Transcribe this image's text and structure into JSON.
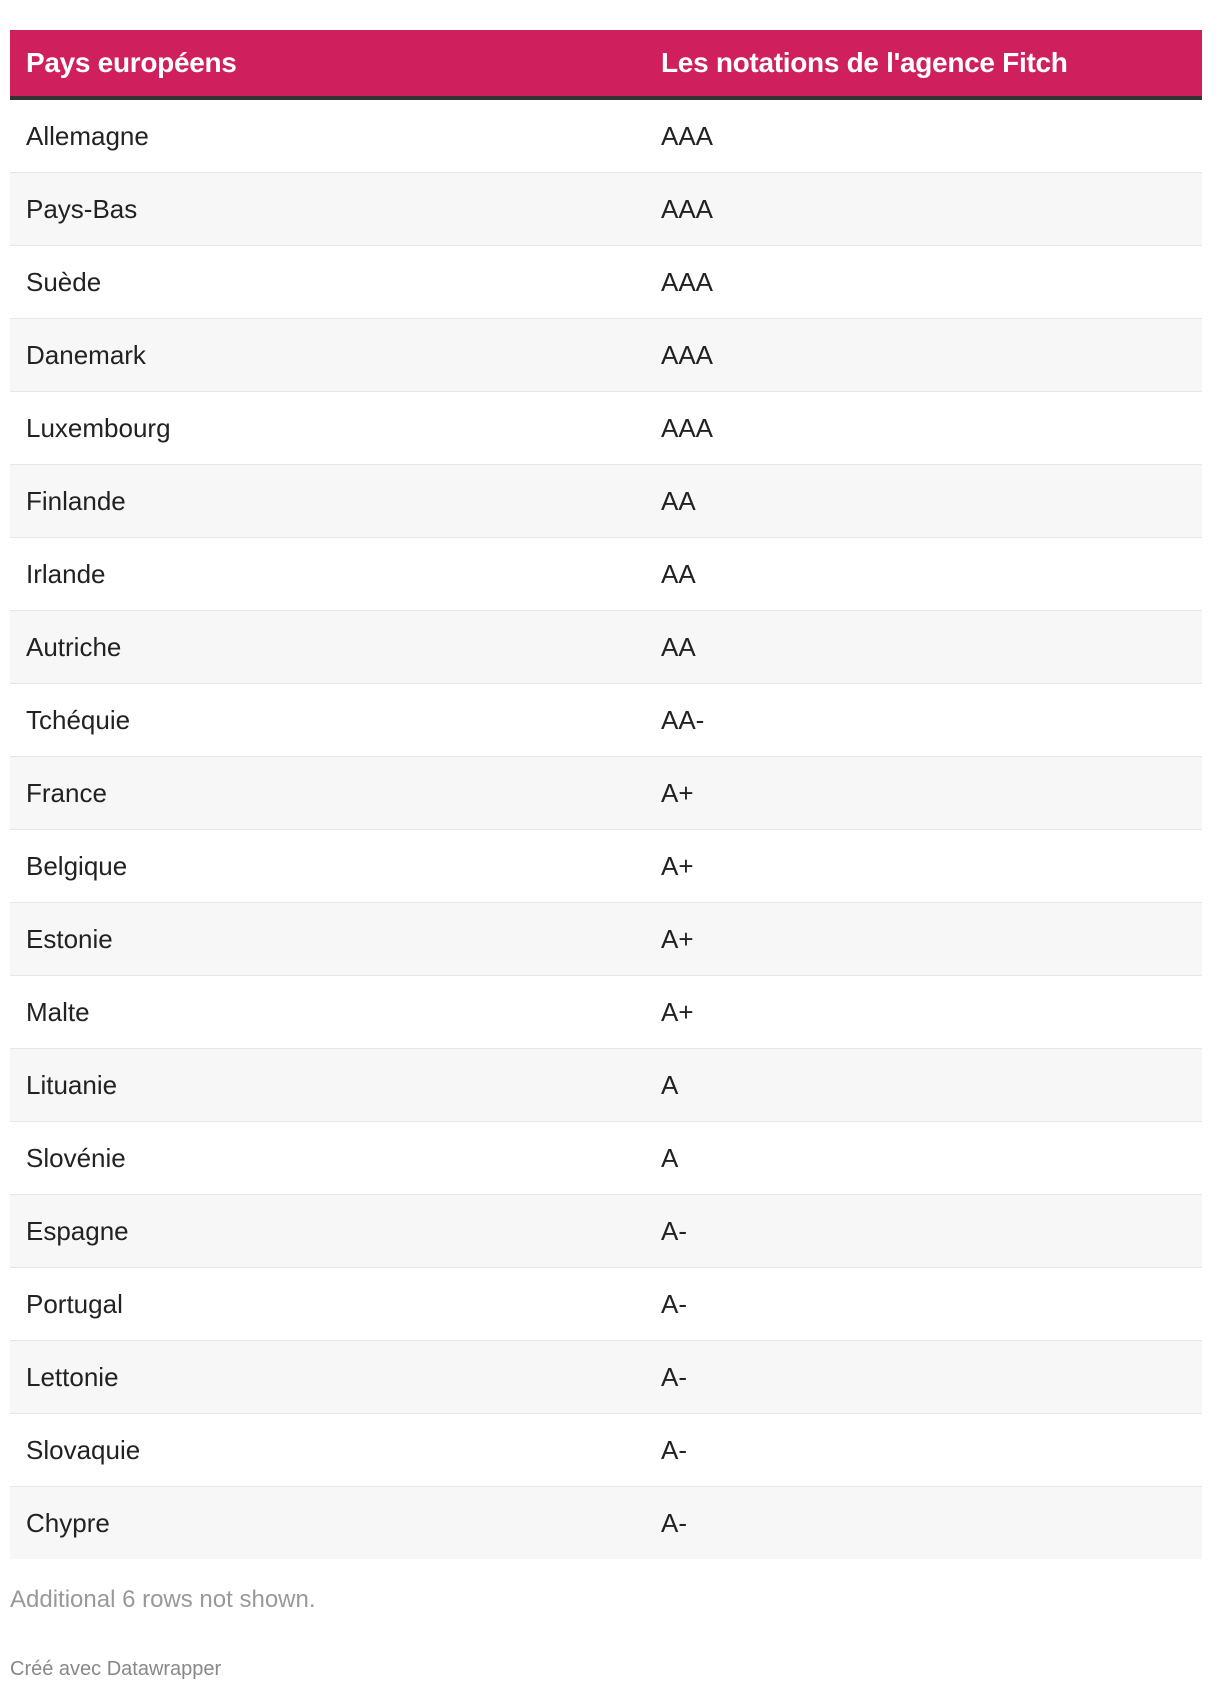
{
  "header": {
    "col1": "Pays européens",
    "col2": "Les notations de l'agence Fitch"
  },
  "colors": {
    "header_bg": "#cf1f5c",
    "header_border": "#333333",
    "stripe": "#f7f7f7"
  },
  "rows": [
    {
      "country": "Allemagne",
      "rating": "AAA"
    },
    {
      "country": "Pays-Bas",
      "rating": "AAA"
    },
    {
      "country": "Suède",
      "rating": "AAA"
    },
    {
      "country": "Danemark",
      "rating": "AAA"
    },
    {
      "country": "Luxembourg",
      "rating": "AAA"
    },
    {
      "country": "Finlande",
      "rating": "AA"
    },
    {
      "country": "Irlande",
      "rating": "AA"
    },
    {
      "country": "Autriche",
      "rating": "AA"
    },
    {
      "country": "Tchéquie",
      "rating": "AA-"
    },
    {
      "country": "France",
      "rating": "A+"
    },
    {
      "country": "Belgique",
      "rating": "A+"
    },
    {
      "country": "Estonie",
      "rating": "A+"
    },
    {
      "country": "Malte",
      "rating": "A+"
    },
    {
      "country": "Lituanie",
      "rating": "A"
    },
    {
      "country": "Slovénie",
      "rating": "A"
    },
    {
      "country": "Espagne",
      "rating": "A-"
    },
    {
      "country": "Portugal",
      "rating": "A-"
    },
    {
      "country": "Lettonie",
      "rating": "A-"
    },
    {
      "country": "Slovaquie",
      "rating": "A-"
    },
    {
      "country": "Chypre",
      "rating": "A-"
    }
  ],
  "footer": {
    "note": "Additional 6 rows not shown.",
    "credit": "Créé avec Datawrapper"
  }
}
